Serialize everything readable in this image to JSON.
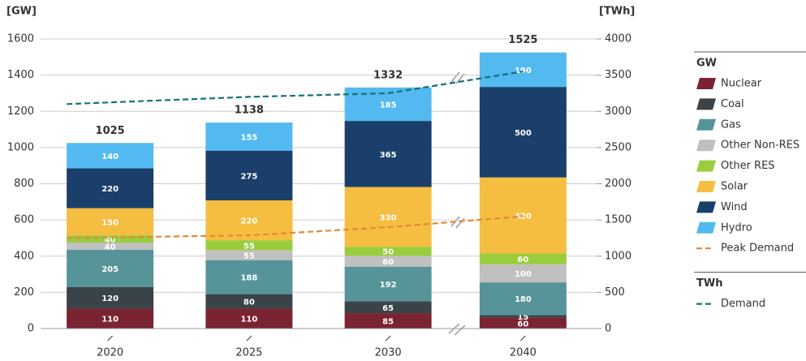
{
  "chart_data": {
    "type": "bar",
    "stacked": true,
    "ylabel": "[GW]",
    "y2label": "[TWh]",
    "categories": [
      "2020",
      "2025",
      "2030",
      "2040"
    ],
    "ylim": [
      0,
      1600
    ],
    "yticks": [
      0,
      200,
      400,
      600,
      800,
      1000,
      1200,
      1400,
      1600
    ],
    "y2lim": [
      0,
      4000
    ],
    "y2ticks": [
      0,
      500,
      1000,
      1500,
      2000,
      2500,
      3000,
      3500,
      4000
    ],
    "grid": true,
    "totals": [
      1025,
      1138,
      1332,
      1525
    ],
    "legend_groups": [
      "GW",
      "TWh"
    ],
    "series": [
      {
        "name": "Nuclear",
        "color": "#7b2431",
        "values": [
          110,
          110,
          85,
          60
        ]
      },
      {
        "name": "Coal",
        "color": "#3a4448",
        "values": [
          120,
          80,
          65,
          15
        ]
      },
      {
        "name": "Gas",
        "color": "#56949a",
        "values": [
          205,
          188,
          192,
          180
        ]
      },
      {
        "name": "Other Non-RES",
        "color": "#c0c0c0",
        "values": [
          40,
          55,
          60,
          100
        ]
      },
      {
        "name": "Other RES",
        "color": "#9acd3c",
        "values": [
          40,
          55,
          50,
          60
        ]
      },
      {
        "name": "Solar",
        "color": "#f5be41",
        "values": [
          150,
          220,
          330,
          420
        ]
      },
      {
        "name": "Wind",
        "color": "#1b3f6b",
        "values": [
          220,
          275,
          365,
          500
        ]
      },
      {
        "name": "Hydro",
        "color": "#52baf0",
        "values": [
          140,
          155,
          185,
          190
        ]
      },
      {
        "name": "Peak Demand",
        "type": "line",
        "color": "#e08a3c",
        "values": [
          500,
          515,
          560,
          620
        ]
      },
      {
        "name": "Demand",
        "type": "line",
        "axis": "y2",
        "color": "#14727a",
        "values": [
          3100,
          3200,
          3250,
          3550
        ]
      }
    ]
  }
}
